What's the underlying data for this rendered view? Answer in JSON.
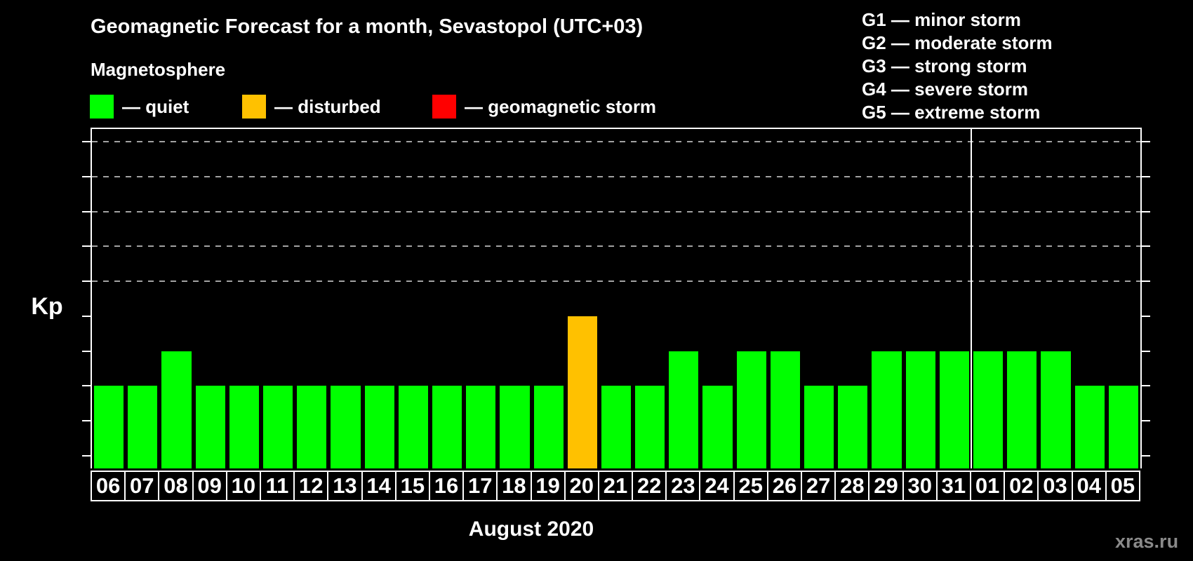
{
  "header": {
    "title": "Geomagnetic Forecast for a month, Sevastopol (UTC+03)",
    "subtitle": "Magnetosphere"
  },
  "legend": {
    "items": [
      {
        "status": "quiet",
        "label": "— quiet",
        "color": "#00ff00"
      },
      {
        "status": "disturbed",
        "label": "— disturbed",
        "color": "#ffc100"
      },
      {
        "status": "storm",
        "label": "— geomagnetic storm",
        "color": "#ff0000"
      }
    ]
  },
  "g_scale_legend": {
    "items": [
      {
        "code": "G1",
        "label": "G1 — minor storm"
      },
      {
        "code": "G2",
        "label": "G2 — moderate storm"
      },
      {
        "code": "G3",
        "label": "G3 — strong storm"
      },
      {
        "code": "G4",
        "label": "G4 — severe storm"
      },
      {
        "code": "G5",
        "label": "G5 — extreme storm"
      }
    ]
  },
  "chart_data": {
    "type": "bar",
    "title": "Geomagnetic Forecast for a month, Sevastopol (UTC+03)",
    "xlabel": "August 2020",
    "ylabel": "Kp",
    "ylim": [
      0,
      9
    ],
    "yticks": [
      0,
      1,
      2,
      3,
      4,
      5,
      6,
      7,
      8,
      9
    ],
    "gridlines_at_kp": [
      5,
      6,
      7,
      8,
      9
    ],
    "grid": "dashed-horizontal-at-storm-levels",
    "legend_position": "top",
    "categories": [
      "06",
      "07",
      "08",
      "09",
      "10",
      "11",
      "12",
      "13",
      "14",
      "15",
      "16",
      "17",
      "18",
      "19",
      "20",
      "21",
      "22",
      "23",
      "24",
      "25",
      "26",
      "27",
      "28",
      "29",
      "30",
      "31",
      "01",
      "02",
      "03",
      "04",
      "05"
    ],
    "values": [
      2,
      2,
      3,
      2,
      2,
      2,
      2,
      2,
      2,
      2,
      2,
      2,
      2,
      2,
      4,
      2,
      2,
      3,
      2,
      3,
      3,
      2,
      2,
      3,
      3,
      3,
      3,
      3,
      3,
      2,
      2
    ],
    "statuses": [
      "quiet",
      "quiet",
      "quiet",
      "quiet",
      "quiet",
      "quiet",
      "quiet",
      "quiet",
      "quiet",
      "quiet",
      "quiet",
      "quiet",
      "quiet",
      "quiet",
      "disturbed",
      "quiet",
      "quiet",
      "quiet",
      "quiet",
      "quiet",
      "quiet",
      "quiet",
      "quiet",
      "quiet",
      "quiet",
      "quiet",
      "quiet",
      "quiet",
      "quiet",
      "quiet",
      "quiet"
    ],
    "status_colors": {
      "quiet": "#00ff00",
      "disturbed": "#ffc100",
      "storm": "#ff0000"
    },
    "right_axis": [
      {
        "kp": 5,
        "label": "G1"
      },
      {
        "kp": 6,
        "label": "G2"
      },
      {
        "kp": 7,
        "label": "G3"
      },
      {
        "kp": 8,
        "label": "G4"
      },
      {
        "kp": 9,
        "label": "G5"
      }
    ],
    "month_separator_after_index": 25
  },
  "watermark": "xras.ru"
}
